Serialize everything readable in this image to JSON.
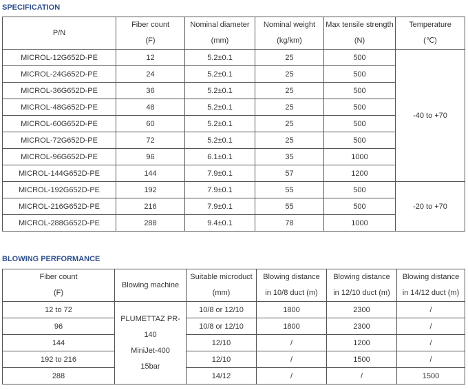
{
  "specification": {
    "title": "SPECIFICATION",
    "headers": [
      [
        "P/N",
        ""
      ],
      [
        "Fiber count",
        "(F)"
      ],
      [
        "Nominal diameter",
        "(mm)"
      ],
      [
        "Nominal weight",
        "(kg/km)"
      ],
      [
        "Max tensile strength",
        "(N)"
      ],
      [
        "Temperature",
        "(℃)"
      ]
    ],
    "rows": [
      [
        "MICROL-12G652D-PE",
        "12",
        "5.2±0.1",
        "25",
        "500"
      ],
      [
        "MICROL-24G652D-PE",
        "24",
        "5.2±0.1",
        "25",
        "500"
      ],
      [
        "MICROL-36G652D-PE",
        "36",
        "5.2±0.1",
        "25",
        "500"
      ],
      [
        "MICROL-48G652D-PE",
        "48",
        "5.2±0.1",
        "25",
        "500"
      ],
      [
        "MICROL-60G652D-PE",
        "60",
        "5.2±0.1",
        "25",
        "500"
      ],
      [
        "MICROL-72G652D-PE",
        "72",
        "5.2±0.1",
        "25",
        "500"
      ],
      [
        "MICROL-96G652D-PE",
        "96",
        "6.1±0.1",
        "35",
        "1000"
      ],
      [
        "MICROL-144G652D-PE",
        "144",
        "7.9±0.1",
        "57",
        "1200"
      ],
      [
        "MICROL-192G652D-PE",
        "192",
        "7.9±0.1",
        "55",
        "500"
      ],
      [
        "MICROL-216G652D-PE",
        "216",
        "7.9±0.1",
        "55",
        "500"
      ],
      [
        "MICROL-288G652D-PE",
        "288",
        "9.4±0.1",
        "78",
        "1000"
      ]
    ],
    "temperature": [
      "-40 to +70",
      "-20 to +70"
    ]
  },
  "blowing": {
    "title": "BLOWING PERFORMANCE",
    "headers": [
      [
        "Fiber count",
        "(F)"
      ],
      [
        "Blowing machine",
        ""
      ],
      [
        "Suitable microduct",
        "(mm)"
      ],
      [
        "Blowing distance",
        "in 10/8 duct (m)"
      ],
      [
        "Blowing distance",
        "in 12/10 duct (m)"
      ],
      [
        "Blowing distance",
        "in 14/12 duct (m)"
      ]
    ],
    "machine": [
      "PLUMETTAZ PR-",
      "140",
      "MiniJet-400",
      "15bar"
    ],
    "rows": [
      [
        "12 to 72",
        "10/8 or 12/10",
        "1800",
        "2300",
        "/"
      ],
      [
        "96",
        "10/8 or 12/10",
        "1800",
        "2300",
        "/"
      ],
      [
        "144",
        "12/10",
        "/",
        "1200",
        "/"
      ],
      [
        "192 to 216",
        "12/10",
        "/",
        "1500",
        "/"
      ],
      [
        "288",
        "14/12",
        "/",
        "/",
        "1500"
      ]
    ]
  }
}
